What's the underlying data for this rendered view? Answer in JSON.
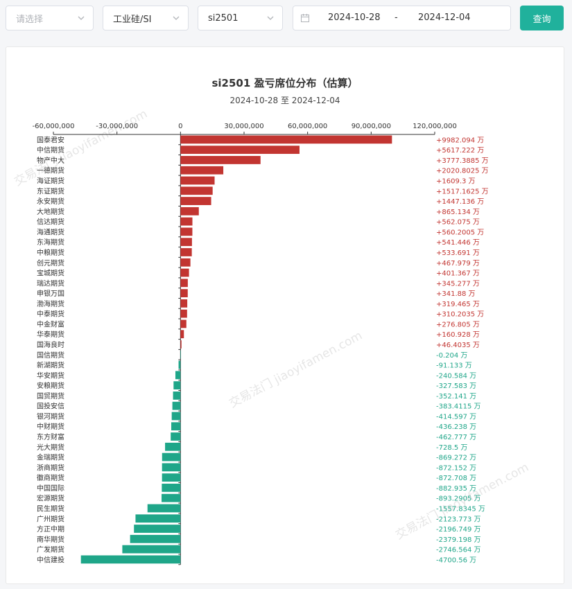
{
  "filters": {
    "placeholder": "请选择",
    "product": "工业硅/SI",
    "contract": "si2501",
    "date_start": "2024-10-28",
    "date_sep": "-",
    "date_end": "2024-12-04",
    "query_label": "查询"
  },
  "colors": {
    "profit": "#c23531",
    "loss": "#1fa689",
    "accent": "#20b19c"
  },
  "watermark": "交易法门 jiaoyifamen.com",
  "chart_data": {
    "type": "bar",
    "orientation": "horizontal",
    "title": "si2501 盈亏席位分布（估算）",
    "subtitle": "2024-10-28 至 2024-12-04",
    "unit": "万",
    "xlim": [
      -60000000,
      120000000
    ],
    "xticks": [
      -60000000,
      -30000000,
      0,
      30000000,
      60000000,
      90000000,
      120000000
    ],
    "xtick_labels": [
      "-60,000,000",
      "-30,000,000",
      "0",
      "30,000,000",
      "60,000,000",
      "90,000,000",
      "120,000,000"
    ],
    "categories": [
      "国泰君安",
      "中信期货",
      "物产中大",
      "一德期货",
      "海证期货",
      "东证期货",
      "永安期货",
      "大地期货",
      "信达期货",
      "海通期货",
      "东海期货",
      "中粮期货",
      "创元期货",
      "宝城期货",
      "瑞达期货",
      "申银万国",
      "渤海期货",
      "中泰期货",
      "中金财富",
      "华泰期货",
      "国海良时",
      "国信期货",
      "新湖期货",
      "华安期货",
      "安粮期货",
      "国贸期货",
      "国投安信",
      "银河期货",
      "中财期货",
      "东方财富",
      "光大期货",
      "金瑞期货",
      "浙商期货",
      "徽商期货",
      "中国国际",
      "宏源期货",
      "民生期货",
      "广州期货",
      "方正中期",
      "南华期货",
      "广发期货",
      "中信建投"
    ],
    "values_wan": [
      9982.094,
      5617.222,
      3777.3885,
      2020.8025,
      1609.3,
      1517.1625,
      1447.136,
      865.134,
      562.075,
      560.2005,
      541.446,
      533.691,
      467.979,
      401.367,
      345.277,
      341.88,
      319.465,
      310.2035,
      276.805,
      160.928,
      46.4035,
      -0.204,
      -91.133,
      -240.584,
      -327.583,
      -352.141,
      -383.4115,
      -414.597,
      -436.238,
      -462.777,
      -728.5,
      -869.272,
      -872.152,
      -872.708,
      -882.935,
      -893.2905,
      -1557.8345,
      -2123.773,
      -2196.749,
      -2379.198,
      -2746.564,
      -4700.56
    ],
    "labels": [
      "+9982.094 万",
      "+5617.222 万",
      "+3777.3885 万",
      "+2020.8025 万",
      "+1609.3 万",
      "+1517.1625 万",
      "+1447.136 万",
      "+865.134 万",
      "+562.075 万",
      "+560.2005 万",
      "+541.446 万",
      "+533.691 万",
      "+467.979 万",
      "+401.367 万",
      "+345.277 万",
      "+341.88 万",
      "+319.465 万",
      "+310.2035 万",
      "+276.805 万",
      "+160.928 万",
      "+46.4035 万",
      "-0.204 万",
      "-91.133 万",
      "-240.584 万",
      "-327.583 万",
      "-352.141 万",
      "-383.4115 万",
      "-414.597 万",
      "-436.238 万",
      "-462.777 万",
      "-728.5 万",
      "-869.272 万",
      "-872.152 万",
      "-872.708 万",
      "-882.935 万",
      "-893.2905 万",
      "-1557.8345 万",
      "-2123.773 万",
      "-2196.749 万",
      "-2379.198 万",
      "-2746.564 万",
      "-4700.56 万"
    ]
  }
}
